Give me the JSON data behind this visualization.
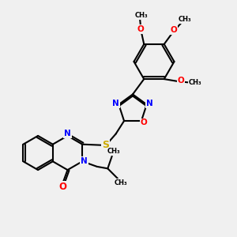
{
  "background_color": "#f0f0f0",
  "bond_color": "#000000",
  "bond_width": 1.5,
  "atom_colors": {
    "N": "#0000ff",
    "O": "#ff0000",
    "S": "#ccaa00",
    "C": "#000000"
  },
  "font_size_atom": 7.5,
  "fig_size": [
    3.0,
    3.0
  ],
  "dpi": 100,
  "xlim": [
    0,
    10
  ],
  "ylim": [
    0,
    10
  ]
}
